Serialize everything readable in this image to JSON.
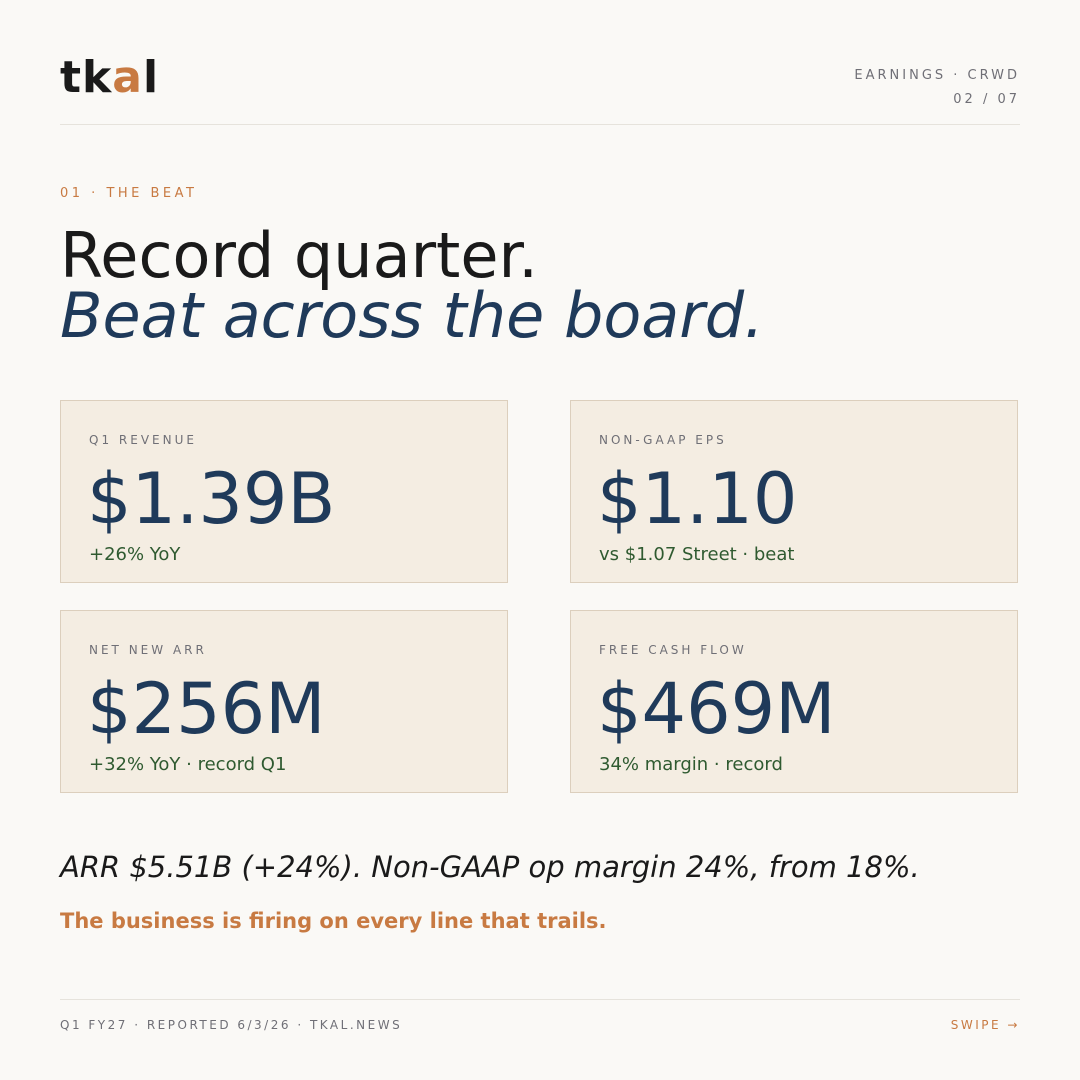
{
  "brand": {
    "logo_prefix": "tk",
    "logo_accent": "a",
    "logo_suffix": "l"
  },
  "header": {
    "kicker": "EARNINGS · CRWD",
    "page": "02 / 07"
  },
  "section": {
    "label": "01 · THE BEAT"
  },
  "headline": {
    "line1": "Record quarter.",
    "line2": "Beat across the board."
  },
  "metrics": [
    {
      "label": "Q1 REVENUE",
      "value": "$1.39B",
      "sub": "+26% YoY"
    },
    {
      "label": "NON-GAAP EPS",
      "value": "$1.10",
      "sub": "vs $1.07 Street · beat"
    },
    {
      "label": "NET NEW ARR",
      "value": "$256M",
      "sub": "+32% YoY · record Q1"
    },
    {
      "label": "FREE CASH FLOW",
      "value": "$469M",
      "sub": "34% margin · record"
    }
  ],
  "summary": "ARR $5.51B (+24%). Non-GAAP op margin 24%, from 18%.",
  "takeaway": "The business is firing on every line that trails.",
  "footer": {
    "left": "Q1 FY27 · REPORTED 6/3/26 · TKAL.NEWS",
    "cta": "SWIPE →"
  },
  "colors": {
    "accent": "#c87a42",
    "navy": "#1f3a5a",
    "green": "#2f5a30",
    "card_bg": "#f4ede2",
    "page_bg": "#faf9f6"
  }
}
